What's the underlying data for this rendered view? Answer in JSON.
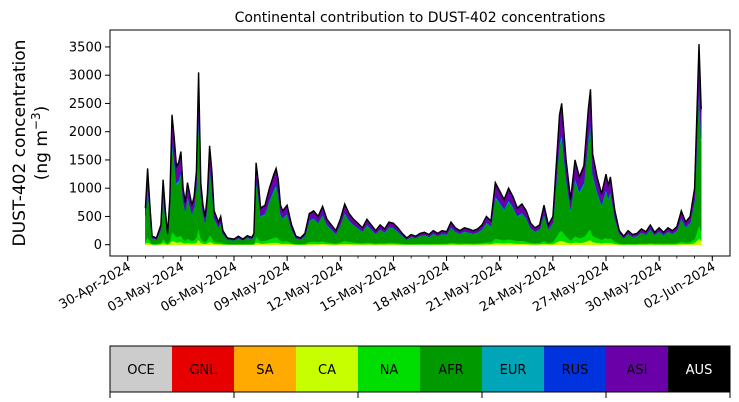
{
  "chart_data": {
    "type": "area",
    "stacked": true,
    "title": "Continental contribution to DUST-402 concentrations",
    "ylabel_line1": "DUST-402 concentration",
    "ylabel_line2_prefix": "(ng m",
    "ylabel_line2_sup": "−3",
    "ylabel_line2_suffix": ")",
    "xlabel": "",
    "x_start": "2024-04-29",
    "x_end": "2024-06-03",
    "ylim": [
      -200,
      3800
    ],
    "yticks": [
      0,
      500,
      1000,
      1500,
      2000,
      2500,
      3000,
      3500
    ],
    "xtick_dates": [
      "2024-04-30",
      "2024-05-03",
      "2024-05-06",
      "2024-05-09",
      "2024-05-12",
      "2024-05-15",
      "2024-05-18",
      "2024-05-21",
      "2024-05-24",
      "2024-05-27",
      "2024-05-30",
      "2024-06-02"
    ],
    "xtick_labels": [
      "30-Apr-2024",
      "03-May-2024",
      "06-May-2024",
      "09-May-2024",
      "12-May-2024",
      "15-May-2024",
      "18-May-2024",
      "21-May-2024",
      "24-May-2024",
      "27-May-2024",
      "30-May-2024",
      "02-Jun-2024"
    ],
    "total": [
      [
        "2024-05-01T00:00",
        650
      ],
      [
        "2024-05-01T03:00",
        1350
      ],
      [
        "2024-05-01T06:00",
        700
      ],
      [
        "2024-05-01T09:00",
        150
      ],
      [
        "2024-05-01T15:00",
        120
      ],
      [
        "2024-05-01T21:00",
        350
      ],
      [
        "2024-05-02T00:00",
        1150
      ],
      [
        "2024-05-02T03:00",
        600
      ],
      [
        "2024-05-02T06:00",
        200
      ],
      [
        "2024-05-02T09:00",
        800
      ],
      [
        "2024-05-02T12:00",
        2300
      ],
      [
        "2024-05-02T15:00",
        1900
      ],
      [
        "2024-05-02T18:00",
        1400
      ],
      [
        "2024-05-02T21:00",
        1450
      ],
      [
        "2024-05-03T00:00",
        1650
      ],
      [
        "2024-05-03T03:00",
        1000
      ],
      [
        "2024-05-03T06:00",
        750
      ],
      [
        "2024-05-03T09:00",
        1100
      ],
      [
        "2024-05-03T12:00",
        900
      ],
      [
        "2024-05-03T15:00",
        700
      ],
      [
        "2024-05-03T18:00",
        850
      ],
      [
        "2024-05-03T21:00",
        1300
      ],
      [
        "2024-05-04T00:00",
        3050
      ],
      [
        "2024-05-04T03:00",
        1100
      ],
      [
        "2024-05-04T06:00",
        700
      ],
      [
        "2024-05-04T09:00",
        500
      ],
      [
        "2024-05-04T12:00",
        900
      ],
      [
        "2024-05-04T15:00",
        1750
      ],
      [
        "2024-05-04T18:00",
        1300
      ],
      [
        "2024-05-04T21:00",
        600
      ],
      [
        "2024-05-05T03:00",
        400
      ],
      [
        "2024-05-05T06:00",
        500
      ],
      [
        "2024-05-05T09:00",
        250
      ],
      [
        "2024-05-05T15:00",
        120
      ],
      [
        "2024-05-06T00:00",
        100
      ],
      [
        "2024-05-06T06:00",
        150
      ],
      [
        "2024-05-06T12:00",
        100
      ],
      [
        "2024-05-06T18:00",
        160
      ],
      [
        "2024-05-07T00:00",
        130
      ],
      [
        "2024-05-07T03:00",
        200
      ],
      [
        "2024-05-07T06:00",
        1450
      ],
      [
        "2024-05-07T09:00",
        1100
      ],
      [
        "2024-05-07T12:00",
        650
      ],
      [
        "2024-05-07T18:00",
        700
      ],
      [
        "2024-05-08T00:00",
        1000
      ],
      [
        "2024-05-08T06:00",
        1250
      ],
      [
        "2024-05-08T09:00",
        1350
      ],
      [
        "2024-05-08T12:00",
        1150
      ],
      [
        "2024-05-08T15:00",
        700
      ],
      [
        "2024-05-08T18:00",
        600
      ],
      [
        "2024-05-09T00:00",
        700
      ],
      [
        "2024-05-09T06:00",
        350
      ],
      [
        "2024-05-09T12:00",
        150
      ],
      [
        "2024-05-09T18:00",
        120
      ],
      [
        "2024-05-10T00:00",
        200
      ],
      [
        "2024-05-10T06:00",
        550
      ],
      [
        "2024-05-10T12:00",
        600
      ],
      [
        "2024-05-10T18:00",
        500
      ],
      [
        "2024-05-11T00:00",
        680
      ],
      [
        "2024-05-11T06:00",
        450
      ],
      [
        "2024-05-11T12:00",
        350
      ],
      [
        "2024-05-11T18:00",
        250
      ],
      [
        "2024-05-12T00:00",
        450
      ],
      [
        "2024-05-12T06:00",
        720
      ],
      [
        "2024-05-12T12:00",
        550
      ],
      [
        "2024-05-12T18:00",
        450
      ],
      [
        "2024-05-13T00:00",
        380
      ],
      [
        "2024-05-13T06:00",
        300
      ],
      [
        "2024-05-13T12:00",
        450
      ],
      [
        "2024-05-13T18:00",
        350
      ],
      [
        "2024-05-14T00:00",
        250
      ],
      [
        "2024-05-14T06:00",
        350
      ],
      [
        "2024-05-14T12:00",
        280
      ],
      [
        "2024-05-14T18:00",
        400
      ],
      [
        "2024-05-15T00:00",
        380
      ],
      [
        "2024-05-15T06:00",
        300
      ],
      [
        "2024-05-15T12:00",
        200
      ],
      [
        "2024-05-15T18:00",
        120
      ],
      [
        "2024-05-16T00:00",
        180
      ],
      [
        "2024-05-16T06:00",
        150
      ],
      [
        "2024-05-16T12:00",
        200
      ],
      [
        "2024-05-16T18:00",
        220
      ],
      [
        "2024-05-17T00:00",
        180
      ],
      [
        "2024-05-17T06:00",
        250
      ],
      [
        "2024-05-17T12:00",
        200
      ],
      [
        "2024-05-17T18:00",
        250
      ],
      [
        "2024-05-18T00:00",
        230
      ],
      [
        "2024-05-18T06:00",
        400
      ],
      [
        "2024-05-18T12:00",
        300
      ],
      [
        "2024-05-18T18:00",
        250
      ],
      [
        "2024-05-19T00:00",
        300
      ],
      [
        "2024-05-19T06:00",
        280
      ],
      [
        "2024-05-19T12:00",
        250
      ],
      [
        "2024-05-19T18:00",
        280
      ],
      [
        "2024-05-20T00:00",
        350
      ],
      [
        "2024-05-20T06:00",
        500
      ],
      [
        "2024-05-20T12:00",
        420
      ],
      [
        "2024-05-20T18:00",
        1100
      ],
      [
        "2024-05-21T00:00",
        950
      ],
      [
        "2024-05-21T06:00",
        800
      ],
      [
        "2024-05-21T12:00",
        1000
      ],
      [
        "2024-05-21T18:00",
        850
      ],
      [
        "2024-05-22T00:00",
        650
      ],
      [
        "2024-05-22T06:00",
        720
      ],
      [
        "2024-05-22T12:00",
        600
      ],
      [
        "2024-05-22T18:00",
        380
      ],
      [
        "2024-05-23T00:00",
        300
      ],
      [
        "2024-05-23T06:00",
        350
      ],
      [
        "2024-05-23T12:00",
        700
      ],
      [
        "2024-05-23T18:00",
        350
      ],
      [
        "2024-05-24T00:00",
        500
      ],
      [
        "2024-05-24T06:00",
        1700
      ],
      [
        "2024-05-24T09:00",
        2300
      ],
      [
        "2024-05-24T12:00",
        2500
      ],
      [
        "2024-05-24T18:00",
        1500
      ],
      [
        "2024-05-25T00:00",
        800
      ],
      [
        "2024-05-25T06:00",
        1500
      ],
      [
        "2024-05-25T12:00",
        1200
      ],
      [
        "2024-05-25T18:00",
        1400
      ],
      [
        "2024-05-26T00:00",
        2400
      ],
      [
        "2024-05-26T03:00",
        2750
      ],
      [
        "2024-05-26T06:00",
        1600
      ],
      [
        "2024-05-26T12:00",
        1200
      ],
      [
        "2024-05-26T18:00",
        900
      ],
      [
        "2024-05-27T00:00",
        1250
      ],
      [
        "2024-05-27T03:00",
        1050
      ],
      [
        "2024-05-27T06:00",
        1200
      ],
      [
        "2024-05-27T12:00",
        600
      ],
      [
        "2024-05-27T18:00",
        250
      ],
      [
        "2024-05-28T00:00",
        150
      ],
      [
        "2024-05-28T06:00",
        250
      ],
      [
        "2024-05-28T12:00",
        180
      ],
      [
        "2024-05-28T18:00",
        200
      ],
      [
        "2024-05-29T00:00",
        280
      ],
      [
        "2024-05-29T06:00",
        230
      ],
      [
        "2024-05-29T12:00",
        350
      ],
      [
        "2024-05-29T18:00",
        220
      ],
      [
        "2024-05-30T00:00",
        300
      ],
      [
        "2024-05-30T06:00",
        220
      ],
      [
        "2024-05-30T12:00",
        300
      ],
      [
        "2024-05-30T18:00",
        250
      ],
      [
        "2024-05-31T00:00",
        320
      ],
      [
        "2024-05-31T06:00",
        600
      ],
      [
        "2024-05-31T12:00",
        400
      ],
      [
        "2024-05-31T18:00",
        500
      ],
      [
        "2024-06-01T00:00",
        1000
      ],
      [
        "2024-06-01T06:00",
        3550
      ],
      [
        "2024-06-01T09:00",
        2400
      ]
    ],
    "series": [
      {
        "name": "OCE",
        "color": "#cccccc",
        "fraction": 0.0
      },
      {
        "name": "GNL",
        "color": "#e60000",
        "fraction": 0.0
      },
      {
        "name": "SA",
        "color": "#ffaa00",
        "fraction": 0.0
      },
      {
        "name": "CA",
        "color": "#c8ff00",
        "fraction": 0.03
      },
      {
        "name": "NA",
        "color": "#00dd00",
        "fraction": 0.07
      },
      {
        "name": "AFR",
        "color": "#009900",
        "fraction": 0.66
      },
      {
        "name": "EUR",
        "color": "#00a5b8",
        "fraction": 0.02
      },
      {
        "name": "RUS",
        "color": "#0033dd",
        "fraction": 0.03
      },
      {
        "name": "ASI",
        "color": "#6a00a8",
        "fraction": 0.17
      },
      {
        "name": "AUS",
        "color": "#000000",
        "fraction": 0.02
      }
    ],
    "legend_placement": "bottom",
    "grid": false
  }
}
